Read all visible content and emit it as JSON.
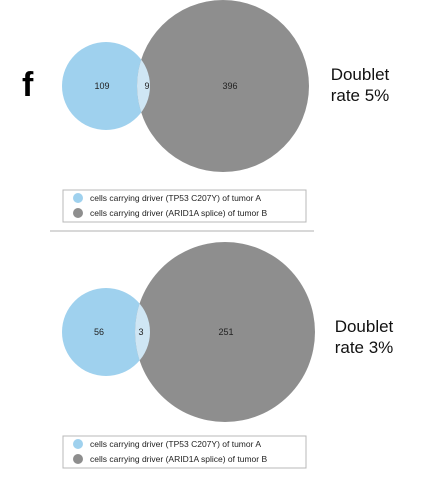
{
  "panel_label": "f",
  "colors": {
    "set_a": "#9fd1ee",
    "set_b": "#8e8e8e",
    "overlap": "#cfe6f4",
    "legend_border": "#b8b8b8",
    "divider": "#b0b0b0"
  },
  "diagrams": [
    {
      "counts": {
        "only_a": "109",
        "overlap": "9",
        "only_b": "396"
      },
      "rate_line1": "Doublet",
      "rate_line2": "rate 5%",
      "legend": [
        "cells carrying driver (TP53 C207Y) of tumor A",
        "cells carrying driver (ARID1A splice) of tumor B"
      ]
    },
    {
      "counts": {
        "only_a": "56",
        "overlap": "3",
        "only_b": "251"
      },
      "rate_line1": "Doublet",
      "rate_line2": "rate 3%",
      "legend": [
        "cells carrying driver (TP53 C207Y) of tumor A",
        "cells carrying driver (ARID1A splice) of tumor B"
      ]
    }
  ]
}
